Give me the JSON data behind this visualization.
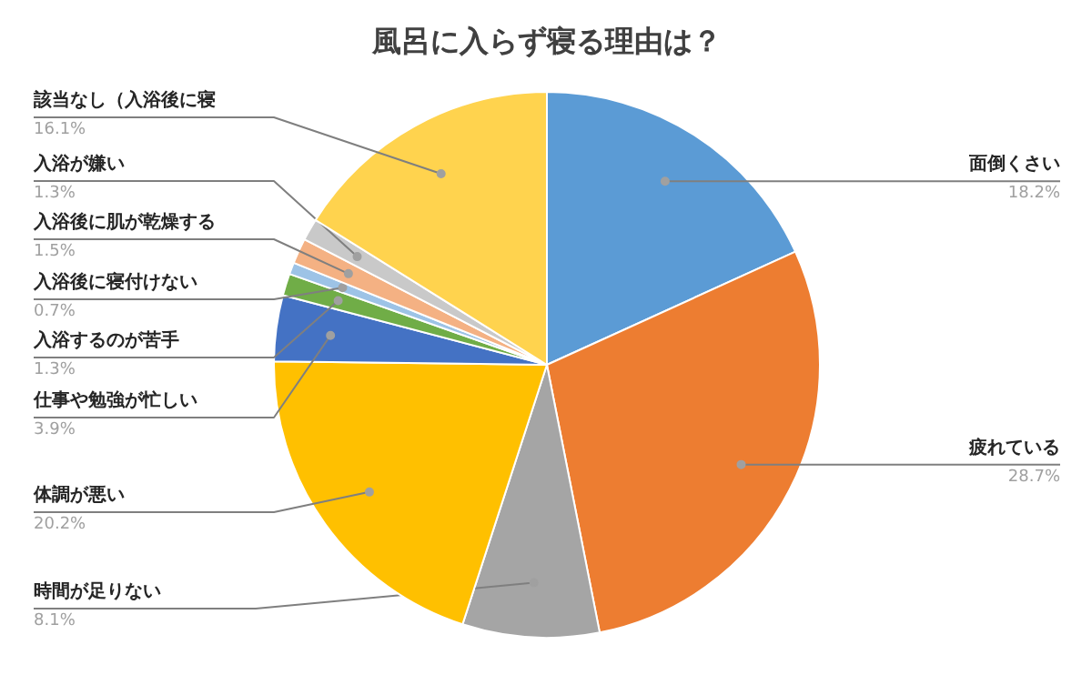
{
  "chart_data": {
    "type": "pie",
    "title": "風呂に入らず寝る理由は？",
    "categories": [
      "面倒くさい",
      "疲れている",
      "時間が足りない",
      "体調が悪い",
      "仕事や勉強が忙しい",
      "入浴するのが苦手",
      "入浴後に寝付けない",
      "入浴後に肌が乾燥する",
      "入浴が嫌い",
      "該当なし（入浴後に寝"
    ],
    "values": [
      18.2,
      28.7,
      8.1,
      20.2,
      3.9,
      1.3,
      0.7,
      1.5,
      1.3,
      16.1
    ],
    "colors": [
      "#5b9bd5",
      "#ed7d31",
      "#a5a5a5",
      "#ffc000",
      "#4472c4",
      "#70ad47",
      "#9dc3e6",
      "#f4b183",
      "#c9c9c9",
      "#ffd34e"
    ],
    "value_labels": [
      "18.2%",
      "28.7%",
      "8.1%",
      "20.2%",
      "3.9%",
      "1.3%",
      "0.7%",
      "1.5%",
      "1.3%",
      "16.1%"
    ]
  }
}
